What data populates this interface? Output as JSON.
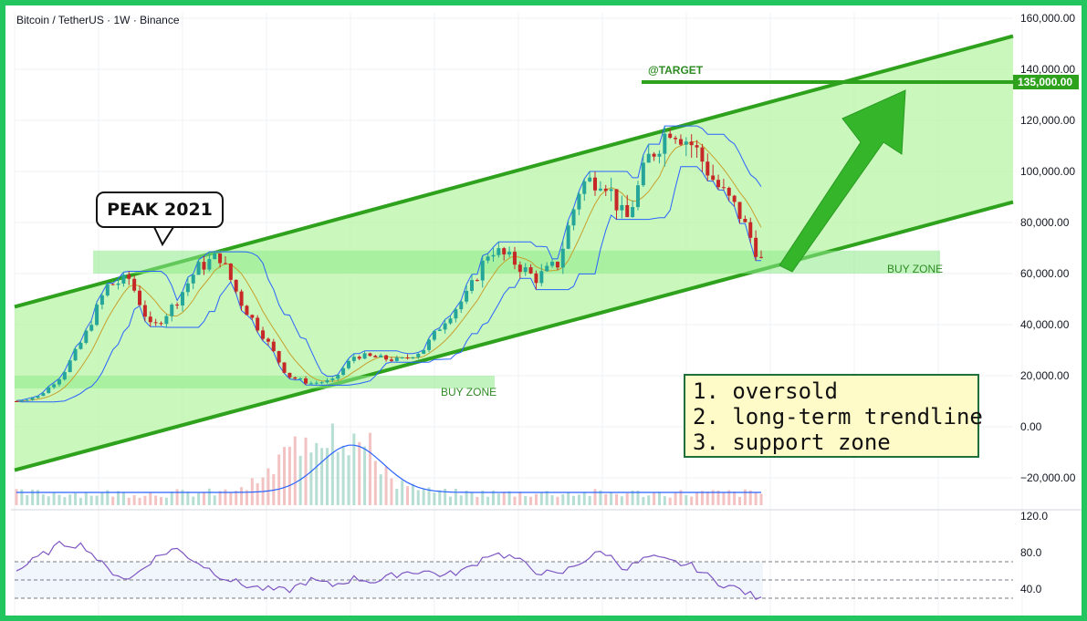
{
  "header": {
    "title": "Bitcoin / TetherUS · 1W · Binance"
  },
  "colors": {
    "frame": "#22c55e",
    "channel_line": "#2ea11d",
    "channel_fill": "#b8f5a6",
    "buy_zone": "#8ee98a",
    "target_line": "#2ea11d",
    "arrow": "#34b52a",
    "candle_up": "#26a69a",
    "candle_down": "#c62828",
    "bollinger_band": "#2962ff",
    "basis_line": "#c8a02c",
    "rsi_line": "#7e57c2",
    "volume_ma": "#2962ff"
  },
  "annotations": {
    "peak_label": "PEAK 2021",
    "target_label": "@TARGET",
    "target_price": "135,000.00",
    "buy_zone_label_1": "BUY ZONE",
    "buy_zone_label_2": "BUY ZONE",
    "notes": [
      "1. oversold",
      "2. long-term trendline",
      "3. support zone"
    ]
  },
  "chart_data": [
    {
      "type": "line",
      "title": "Bitcoin / TetherUS · 1W · Binance",
      "ylim": [
        -25000,
        160000
      ],
      "y_ticks": [
        "160,000.00",
        "140,000.00",
        "120,000.00",
        "100,000.00",
        "80,000.00",
        "60,000.00",
        "40,000.00",
        "20,000.00",
        "0.00",
        "−20,000.00"
      ],
      "series": [
        {
          "values": [
            10000,
            12000,
            20000,
            35000,
            55000,
            58000,
            38000,
            48000,
            62000,
            67000,
            48000,
            35000,
            20000,
            17000,
            18000,
            28000,
            27000,
            26000,
            30000,
            42000,
            52000,
            70000,
            65000,
            58000,
            64000,
            95000,
            98000,
            80000,
            105000,
            118000,
            110000,
            95000,
            84000,
            65000
          ]
        }
      ],
      "channel": {
        "upper": [
          [
            0,
            47000
          ],
          [
            1,
            153000
          ]
        ],
        "lower": [
          [
            0,
            -17000
          ],
          [
            1,
            88000
          ]
        ]
      },
      "target": 135000,
      "buy_zones": [
        [
          60000,
          69000
        ],
        [
          15000,
          20000
        ]
      ],
      "grid": true
    },
    {
      "type": "line",
      "title": "",
      "ylim": [
        20,
        120
      ],
      "y_ticks": [
        "120.0",
        "80.0",
        "40.0"
      ],
      "series": [
        {
          "values": [
            60,
            75,
            90,
            88,
            62,
            50,
            72,
            85,
            70,
            55,
            45,
            40,
            38,
            50,
            44,
            52,
            48,
            58,
            60,
            55,
            62,
            80,
            75,
            60,
            55,
            70,
            82,
            62,
            75,
            70,
            65,
            48,
            40,
            28
          ]
        }
      ],
      "levels": [
        70,
        50,
        30
      ]
    }
  ]
}
